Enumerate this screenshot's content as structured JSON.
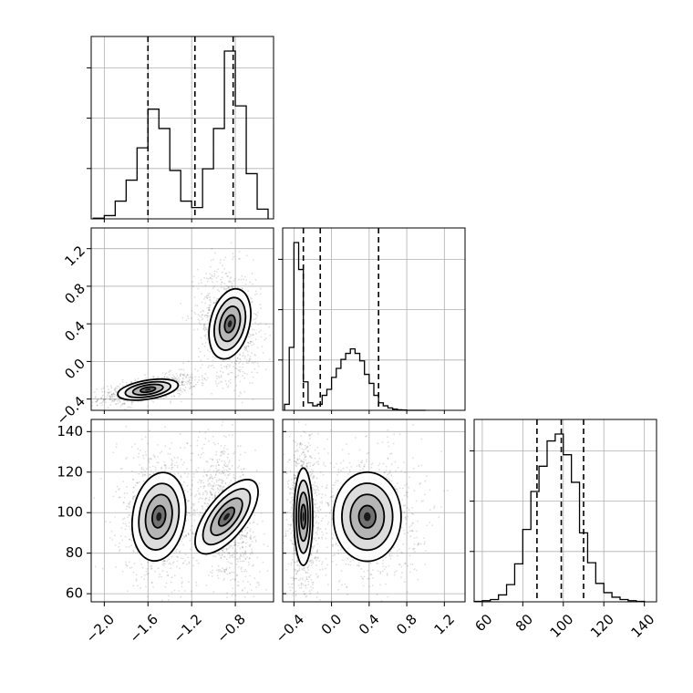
{
  "chart_data": {
    "type": "corner",
    "title": "",
    "grid": true,
    "colors": {
      "ink": "#000000",
      "grid": "#b0b0b0",
      "density": "#555555"
    },
    "parameters": [
      {
        "label": "",
        "range": [
          -2.12,
          -0.45
        ],
        "ticks": [
          "−2.0",
          "−1.6",
          "−1.2",
          "−0.8"
        ],
        "tick_values": [
          -2.0,
          -1.6,
          -1.2,
          -0.8
        ],
        "quantiles": [
          -1.6,
          -1.17,
          -0.82
        ]
      },
      {
        "label": "",
        "range": [
          -0.52,
          1.42
        ],
        "ticks": [
          "−0.4",
          "0.0",
          "0.4",
          "0.8",
          "1.2"
        ],
        "tick_values": [
          -0.4,
          0.0,
          0.4,
          0.8,
          1.2
        ],
        "quantiles": [
          -0.3,
          -0.12,
          0.5
        ]
      },
      {
        "label": "",
        "range": [
          56,
          146
        ],
        "ticks": [
          "60",
          "80",
          "100",
          "120",
          "140"
        ],
        "tick_values": [
          60,
          80,
          100,
          120,
          140
        ],
        "quantiles": [
          87,
          99,
          110
        ]
      }
    ],
    "hist_1d": [
      {
        "param": 0,
        "bin_edges": [
          -2.1,
          -2.0,
          -1.9,
          -1.8,
          -1.7,
          -1.6,
          -1.5,
          -1.4,
          -1.3,
          -1.2,
          -1.1,
          -1.0,
          -0.9,
          -0.8,
          -0.7,
          -0.6,
          -0.5
        ],
        "counts": [
          2,
          10,
          55,
          120,
          220,
          340,
          280,
          150,
          55,
          35,
          155,
          280,
          520,
          350,
          140,
          30
        ]
      },
      {
        "param": 1,
        "bin_edges": [
          -0.5,
          -0.45,
          -0.4,
          -0.35,
          -0.3,
          -0.25,
          -0.2,
          -0.15,
          -0.1,
          -0.05,
          0.0,
          0.05,
          0.1,
          0.15,
          0.2,
          0.25,
          0.3,
          0.35,
          0.4,
          0.45,
          0.5,
          0.55,
          0.6,
          0.65,
          0.7,
          0.75,
          0.8,
          0.85,
          0.9,
          0.95,
          1.0
        ],
        "counts": [
          20,
          210,
          560,
          470,
          95,
          25,
          15,
          20,
          50,
          70,
          110,
          140,
          170,
          190,
          205,
          190,
          165,
          120,
          90,
          50,
          25,
          15,
          8,
          4,
          2,
          1,
          0,
          0,
          0,
          0
        ]
      },
      {
        "param": 2,
        "bin_edges": [
          56,
          60,
          64,
          68,
          72,
          76,
          80,
          84,
          88,
          92,
          96,
          100,
          104,
          108,
          112,
          116,
          120,
          124,
          128,
          132,
          136,
          140
        ],
        "counts": [
          2,
          5,
          10,
          30,
          75,
          165,
          315,
          480,
          590,
          700,
          730,
          640,
          520,
          300,
          170,
          80,
          40,
          20,
          10,
          5,
          2
        ]
      }
    ],
    "hist_2d": [
      {
        "x_param": 0,
        "y_param": 1,
        "modes": [
          {
            "cx": -1.6,
            "cy": -0.3,
            "sx": 0.14,
            "sy": 0.05,
            "rho": 0.6
          },
          {
            "cx": -0.85,
            "cy": 0.4,
            "sx": 0.09,
            "sy": 0.19,
            "rho": -0.15
          }
        ]
      },
      {
        "x_param": 0,
        "y_param": 2,
        "modes": [
          {
            "cx": -1.5,
            "cy": 98,
            "sx": 0.12,
            "sy": 11,
            "rho": -0.1
          },
          {
            "cx": -0.88,
            "cy": 98,
            "sx": 0.09,
            "sy": 11,
            "rho": -0.4
          }
        ]
      },
      {
        "x_param": 1,
        "y_param": 2,
        "modes": [
          {
            "cx": -0.3,
            "cy": 98,
            "sx": 0.05,
            "sy": 12,
            "rho": 0.0
          },
          {
            "cx": 0.38,
            "cy": 98,
            "sx": 0.18,
            "sy": 11,
            "rho": 0.0
          }
        ]
      }
    ]
  }
}
